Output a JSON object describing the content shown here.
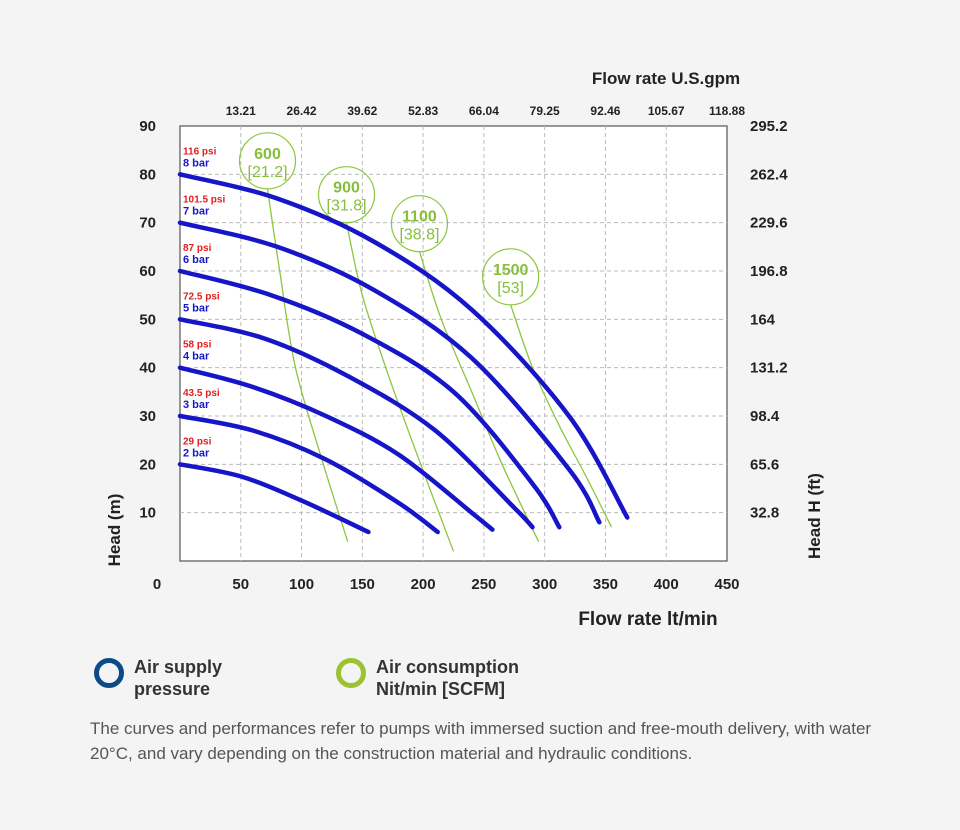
{
  "chart_data": {
    "type": "line",
    "x_bottom": {
      "label": "Flow rate lt/min",
      "ticks": [
        "0",
        "50",
        "100",
        "150",
        "200",
        "250",
        "300",
        "350",
        "400",
        "450"
      ],
      "range": [
        0,
        450
      ]
    },
    "x_top": {
      "label": "Flow rate U.S.gpm",
      "ticks": [
        "13.21",
        "26.42",
        "39.62",
        "52.83",
        "66.04",
        "79.25",
        "92.46",
        "105.67",
        "118.88"
      ]
    },
    "y_left": {
      "label": "Head (m)",
      "ticks": [
        "10",
        "20",
        "30",
        "40",
        "50",
        "60",
        "70",
        "80",
        "90"
      ],
      "range": [
        0,
        90
      ]
    },
    "y_right": {
      "label": "Head H (ft)",
      "ticks": [
        "32.8",
        "65.6",
        "98.4",
        "131.2",
        "164",
        "196.8",
        "229.6",
        "262.4",
        "295.2"
      ]
    },
    "grid": true,
    "pressure_series": [
      {
        "psi": "29 psi",
        "bar": "2 bar",
        "x": [
          0,
          50,
          100,
          155
        ],
        "y": [
          20,
          17.5,
          12.5,
          6
        ]
      },
      {
        "psi": "43.5 psi",
        "bar": "3 bar",
        "x": [
          0,
          60,
          120,
          180,
          212
        ],
        "y": [
          30,
          27,
          21,
          12,
          6
        ]
      },
      {
        "psi": "58 psi",
        "bar": "4 bar",
        "x": [
          0,
          60,
          120,
          180,
          240,
          257
        ],
        "y": [
          40,
          36,
          30,
          22,
          10,
          6.5
        ]
      },
      {
        "psi": "72.5 psi",
        "bar": "5 bar",
        "x": [
          0,
          70,
          140,
          210,
          275,
          290
        ],
        "y": [
          50,
          46,
          38,
          27,
          11,
          7
        ]
      },
      {
        "psi": "87 psi",
        "bar": "6 bar",
        "x": [
          0,
          75,
          150,
          225,
          290,
          312
        ],
        "y": [
          60,
          55,
          47,
          35,
          16,
          7
        ]
      },
      {
        "psi": "101.5 psi",
        "bar": "7 bar",
        "x": [
          0,
          80,
          160,
          240,
          320,
          345
        ],
        "y": [
          70,
          65,
          56,
          42,
          19,
          8
        ]
      },
      {
        "psi": "116 psi",
        "bar": "8 bar",
        "x": [
          0,
          80,
          160,
          240,
          320,
          368
        ],
        "y": [
          80,
          75,
          66,
          52,
          30,
          9
        ]
      }
    ],
    "air_consumption_series": [
      {
        "value": "600",
        "scfm": "[21.2]",
        "x": [
          72,
          82,
          95,
          118,
          138
        ],
        "y": [
          77,
          60,
          40,
          20,
          4
        ]
      },
      {
        "value": "900",
        "scfm": "[31.8]",
        "x": [
          137,
          150,
          172,
          198,
          225
        ],
        "y": [
          70,
          55,
          38,
          20,
          2
        ]
      },
      {
        "value": "1100",
        "scfm": "[38.8]",
        "x": [
          197,
          215,
          240,
          265,
          295
        ],
        "y": [
          64,
          50,
          35,
          20,
          4
        ]
      },
      {
        "value": "1500",
        "scfm": "[53]",
        "x": [
          272,
          290,
          312,
          333,
          355
        ],
        "y": [
          53,
          40,
          28,
          18,
          7
        ]
      }
    ]
  },
  "legend": {
    "pressure": {
      "line1": "Air supply",
      "line2": "pressure",
      "color": "#0d4a8a"
    },
    "air": {
      "line1": "Air consumption",
      "line2": "Nit/min [SCFM]",
      "color": "#9cc230"
    }
  },
  "colors": {
    "curve": "#1616c8",
    "air": "#8cc63f",
    "psi": "#e01e1e",
    "bar": "#1616c8"
  },
  "footnote": "The curves and performances refer to pumps with immersed suction and free-mouth delivery, with water 20°C, and vary depending on the construction material and hydraulic conditions."
}
